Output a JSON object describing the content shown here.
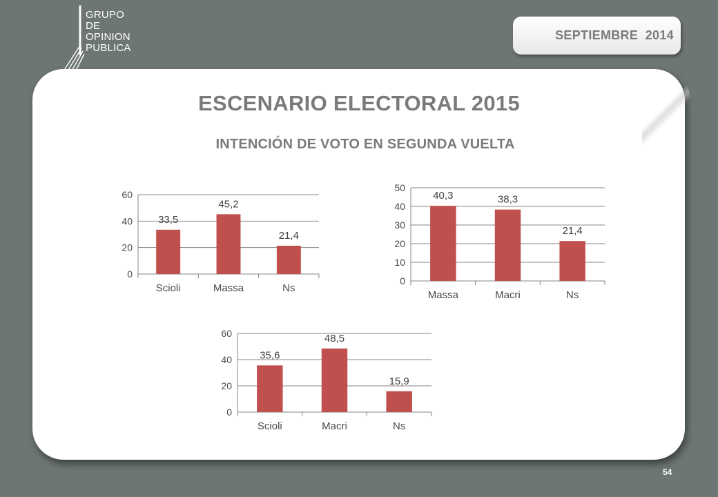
{
  "logo": {
    "lines": [
      "GRUPO",
      "DE",
      "OPINION",
      "PUBLICA"
    ]
  },
  "header": {
    "date": "SEPTIEMBRE  2014"
  },
  "title": "ESCENARIO ELECTORAL 2015",
  "subtitle": "INTENCIÓN DE VOTO EN SEGUNDA VUELTA",
  "page_number": "54",
  "colors": {
    "bar": "#c0504d",
    "background": "#6e7575",
    "card": "#ffffff",
    "text": "#7a7a7a",
    "axis": "#868686"
  },
  "chart_data": [
    {
      "type": "bar",
      "categories": [
        "Scioli",
        "Massa",
        "Ns"
      ],
      "values": [
        33.5,
        45.2,
        21.4
      ],
      "labels": [
        "33,5",
        "45,2",
        "21,4"
      ],
      "yticks": [
        "0",
        "20",
        "40",
        "60"
      ],
      "ylim": [
        0,
        60
      ],
      "grid": true
    },
    {
      "type": "bar",
      "categories": [
        "Massa",
        "Macri",
        "Ns"
      ],
      "values": [
        40.3,
        38.3,
        21.4
      ],
      "labels": [
        "40,3",
        "38,3",
        "21,4"
      ],
      "yticks": [
        "0",
        "10",
        "20",
        "30",
        "40",
        "50"
      ],
      "ylim": [
        0,
        50
      ],
      "grid": true
    },
    {
      "type": "bar",
      "categories": [
        "Scioli",
        "Macri",
        "Ns"
      ],
      "values": [
        35.6,
        48.5,
        15.9
      ],
      "labels": [
        "35,6",
        "48,5",
        "15,9"
      ],
      "yticks": [
        "0",
        "20",
        "40",
        "60"
      ],
      "ylim": [
        0,
        60
      ],
      "grid": true
    }
  ]
}
